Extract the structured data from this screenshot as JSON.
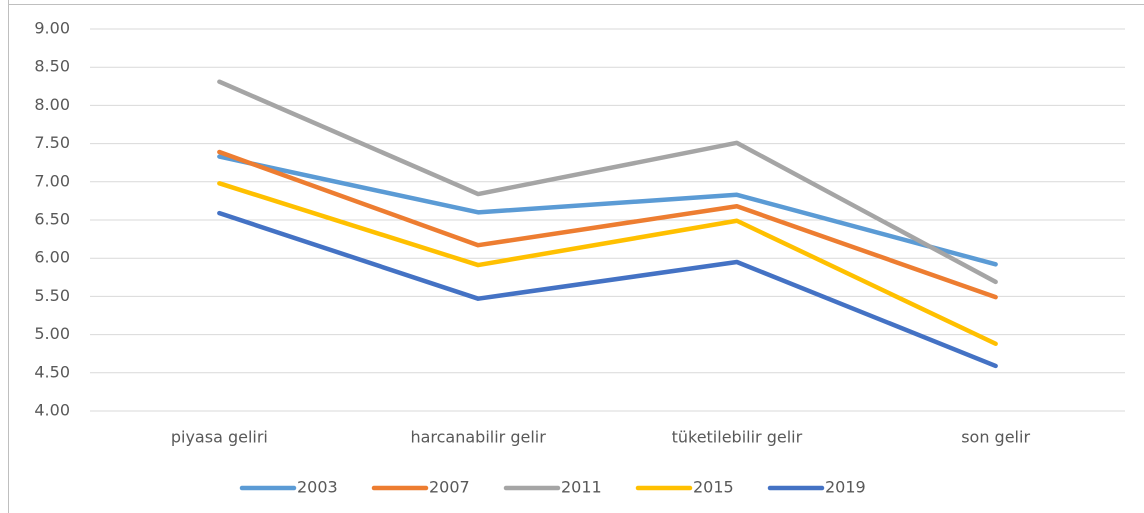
{
  "chart_data": {
    "type": "line",
    "categories": [
      "piyasa geliri",
      "harcanabilir gelir",
      "tüketilebilir gelir",
      "son gelir"
    ],
    "series": [
      {
        "name": "2003",
        "color": "#5b9bd5",
        "values": [
          7.33,
          6.6,
          6.83,
          5.92
        ]
      },
      {
        "name": "2007",
        "color": "#ed7d31",
        "values": [
          7.39,
          6.17,
          6.68,
          5.49
        ]
      },
      {
        "name": "2011",
        "color": "#a5a5a5",
        "values": [
          8.31,
          6.84,
          7.51,
          5.69
        ]
      },
      {
        "name": "2015",
        "color": "#ffc000",
        "values": [
          6.98,
          5.91,
          6.49,
          4.88
        ]
      },
      {
        "name": "2019",
        "color": "#4472c4",
        "values": [
          6.59,
          5.47,
          5.95,
          4.59
        ]
      }
    ],
    "ylim": [
      4,
      9
    ],
    "yticks": [
      {
        "value": 4,
        "label": "4.00"
      },
      {
        "value": 4.5,
        "label": "4.50"
      },
      {
        "value": 5,
        "label": "5.00"
      },
      {
        "value": 5.5,
        "label": "5.50"
      },
      {
        "value": 6,
        "label": "6.00"
      },
      {
        "value": 6.5,
        "label": "6.50"
      },
      {
        "value": 7,
        "label": "7.00"
      },
      {
        "value": 7.5,
        "label": "7.50"
      },
      {
        "value": 8,
        "label": "8.00"
      },
      {
        "value": 8.5,
        "label": "8.50"
      },
      {
        "value": 9,
        "label": "9.00"
      }
    ],
    "grid": true,
    "legend": "bottom"
  }
}
